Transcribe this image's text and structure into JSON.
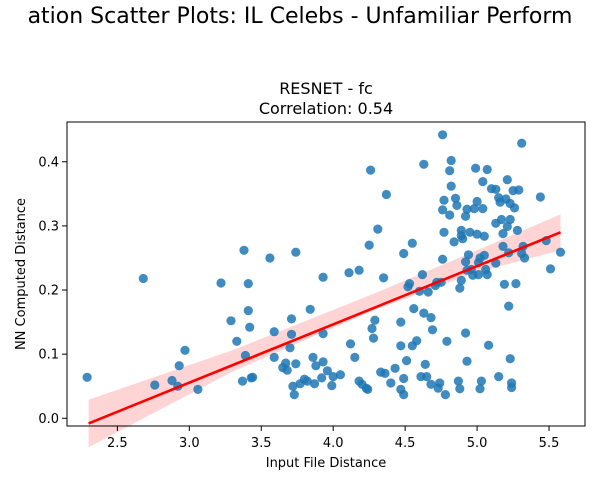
{
  "suptitle": "ation Scatter Plots: IL Celebs - Unfamiliar Perform",
  "chart_data": {
    "type": "scatter",
    "title": "RESNET - fc",
    "subtitle": "Correlation: 0.54",
    "xlabel": "Input File Distance",
    "ylabel": "NN Computed Distance",
    "xlim": [
      2.15,
      5.75
    ],
    "ylim": [
      -0.012,
      0.462
    ],
    "xticks": [
      "2.5",
      "3.0",
      "3.5",
      "4.0",
      "4.5",
      "5.0",
      "5.5"
    ],
    "yticks": [
      "0.0",
      "0.1",
      "0.2",
      "0.3",
      "0.4"
    ],
    "grid": false,
    "point_color": "#1f77b4",
    "fit_color": "#ff0000",
    "band_color": "#ffcccc",
    "fit": {
      "x": [
        2.3,
        5.58
      ],
      "y": [
        -0.008,
        0.29
      ]
    },
    "band": {
      "x": [
        2.3,
        3.3,
        4.3,
        5.0,
        5.58
      ],
      "upper": [
        0.029,
        0.106,
        0.196,
        0.262,
        0.318
      ],
      "lower": [
        -0.045,
        0.073,
        0.17,
        0.228,
        0.262
      ]
    },
    "points": [
      [
        2.29,
        0.064
      ],
      [
        2.68,
        0.218
      ],
      [
        2.76,
        0.052
      ],
      [
        2.88,
        0.059
      ],
      [
        2.92,
        0.05
      ],
      [
        2.93,
        0.082
      ],
      [
        2.97,
        0.106
      ],
      [
        3.06,
        0.045
      ],
      [
        3.22,
        0.211
      ],
      [
        3.29,
        0.152
      ],
      [
        3.33,
        0.12
      ],
      [
        3.37,
        0.058
      ],
      [
        3.38,
        0.262
      ],
      [
        3.39,
        0.098
      ],
      [
        3.41,
        0.21
      ],
      [
        3.41,
        0.168
      ],
      [
        3.42,
        0.142
      ],
      [
        3.43,
        0.063
      ],
      [
        3.44,
        0.064
      ],
      [
        3.56,
        0.25
      ],
      [
        3.59,
        0.135
      ],
      [
        3.59,
        0.095
      ],
      [
        3.65,
        0.079
      ],
      [
        3.67,
        0.086
      ],
      [
        3.68,
        0.075
      ],
      [
        3.7,
        0.11
      ],
      [
        3.71,
        0.131
      ],
      [
        3.71,
        0.155
      ],
      [
        3.72,
        0.05
      ],
      [
        3.73,
        0.037
      ],
      [
        3.74,
        0.259
      ],
      [
        3.74,
        0.085
      ],
      [
        3.77,
        0.054
      ],
      [
        3.8,
        0.061
      ],
      [
        3.82,
        0.058
      ],
      [
        3.84,
        0.17
      ],
      [
        3.86,
        0.095
      ],
      [
        3.87,
        0.054
      ],
      [
        3.88,
        0.082
      ],
      [
        3.92,
        0.063
      ],
      [
        3.93,
        0.088
      ],
      [
        3.93,
        0.22
      ],
      [
        3.93,
        0.132
      ],
      [
        3.96,
        0.074
      ],
      [
        3.99,
        0.051
      ],
      [
        4.0,
        0.065
      ],
      [
        4.05,
        0.068
      ],
      [
        4.11,
        0.227
      ],
      [
        4.12,
        0.116
      ],
      [
        4.15,
        0.095
      ],
      [
        4.18,
        0.058
      ],
      [
        4.18,
        0.231
      ],
      [
        4.2,
        0.053
      ],
      [
        4.23,
        0.047
      ],
      [
        4.24,
        0.045
      ],
      [
        4.25,
        0.27
      ],
      [
        4.26,
        0.387
      ],
      [
        4.27,
        0.14
      ],
      [
        4.28,
        0.125
      ],
      [
        4.29,
        0.153
      ],
      [
        4.31,
        0.295
      ],
      [
        4.33,
        0.072
      ],
      [
        4.35,
        0.219
      ],
      [
        4.36,
        0.07
      ],
      [
        4.37,
        0.349
      ],
      [
        4.4,
        0.055
      ],
      [
        4.43,
        0.078
      ],
      [
        4.47,
        0.113
      ],
      [
        4.47,
        0.15
      ],
      [
        4.47,
        0.045
      ],
      [
        4.49,
        0.062
      ],
      [
        4.49,
        0.037
      ],
      [
        4.49,
        0.257
      ],
      [
        4.51,
        0.09
      ],
      [
        4.52,
        0.205
      ],
      [
        4.53,
        0.21
      ],
      [
        4.55,
        0.113
      ],
      [
        4.55,
        0.273
      ],
      [
        4.56,
        0.171
      ],
      [
        4.58,
        0.121
      ],
      [
        4.6,
        0.198
      ],
      [
        4.61,
        0.065
      ],
      [
        4.62,
        0.224
      ],
      [
        4.63,
        0.396
      ],
      [
        4.63,
        0.164
      ],
      [
        4.64,
        0.084
      ],
      [
        4.65,
        0.065
      ],
      [
        4.66,
        0.197
      ],
      [
        4.68,
        0.053
      ],
      [
        4.68,
        0.157
      ],
      [
        4.69,
        0.138
      ],
      [
        4.71,
        0.207
      ],
      [
        4.72,
        0.212
      ],
      [
        4.73,
        0.047
      ],
      [
        4.74,
        0.055
      ],
      [
        4.75,
        0.212
      ],
      [
        4.76,
        0.248
      ],
      [
        4.76,
        0.442
      ],
      [
        4.76,
        0.325
      ],
      [
        4.77,
        0.29
      ],
      [
        4.77,
        0.34
      ],
      [
        4.78,
        0.037
      ],
      [
        4.79,
        0.12
      ],
      [
        4.81,
        0.386
      ],
      [
        4.81,
        0.317
      ],
      [
        4.82,
        0.362
      ],
      [
        4.82,
        0.402
      ],
      [
        4.84,
        0.275
      ],
      [
        4.85,
        0.343
      ],
      [
        4.86,
        0.332
      ],
      [
        4.87,
        0.058
      ],
      [
        4.88,
        0.046
      ],
      [
        4.88,
        0.203
      ],
      [
        4.89,
        0.285
      ],
      [
        4.89,
        0.293
      ],
      [
        4.89,
        0.215
      ],
      [
        4.9,
        0.28
      ],
      [
        4.92,
        0.315
      ],
      [
        4.92,
        0.244
      ],
      [
        4.92,
        0.133
      ],
      [
        4.93,
        0.231
      ],
      [
        4.93,
        0.326
      ],
      [
        4.93,
        0.089
      ],
      [
        4.94,
        0.255
      ],
      [
        4.95,
        0.29
      ],
      [
        4.96,
        0.232
      ],
      [
        4.97,
        0.223
      ],
      [
        4.98,
        0.327
      ],
      [
        4.99,
        0.39
      ],
      [
        5.0,
        0.338
      ],
      [
        5.0,
        0.287
      ],
      [
        5.01,
        0.243
      ],
      [
        5.01,
        0.224
      ],
      [
        5.02,
        0.25
      ],
      [
        5.02,
        0.046
      ],
      [
        5.03,
        0.058
      ],
      [
        5.04,
        0.369
      ],
      [
        5.04,
        0.327
      ],
      [
        5.05,
        0.284
      ],
      [
        5.05,
        0.254
      ],
      [
        5.06,
        0.232
      ],
      [
        5.07,
        0.388
      ],
      [
        5.07,
        0.224
      ],
      [
        5.08,
        0.114
      ],
      [
        5.1,
        0.358
      ],
      [
        5.13,
        0.357
      ],
      [
        5.13,
        0.304
      ],
      [
        5.13,
        0.242
      ],
      [
        5.15,
        0.065
      ],
      [
        5.15,
        0.344
      ],
      [
        5.16,
        0.337
      ],
      [
        5.17,
        0.31
      ],
      [
        5.18,
        0.268
      ],
      [
        5.18,
        0.288
      ],
      [
        5.19,
        0.209
      ],
      [
        5.2,
        0.342
      ],
      [
        5.21,
        0.372
      ],
      [
        5.21,
        0.299
      ],
      [
        5.22,
        0.258
      ],
      [
        5.22,
        0.175
      ],
      [
        5.23,
        0.335
      ],
      [
        5.23,
        0.31
      ],
      [
        5.23,
        0.093
      ],
      [
        5.24,
        0.048
      ],
      [
        5.24,
        0.055
      ],
      [
        5.25,
        0.355
      ],
      [
        5.26,
        0.328
      ],
      [
        5.27,
        0.21
      ],
      [
        5.28,
        0.293
      ],
      [
        5.29,
        0.356
      ],
      [
        5.31,
        0.429
      ],
      [
        5.31,
        0.257
      ],
      [
        5.32,
        0.268
      ],
      [
        5.33,
        0.25
      ],
      [
        5.44,
        0.345
      ],
      [
        5.51,
        0.233
      ],
      [
        5.58,
        0.259
      ],
      [
        5.48,
        0.277
      ]
    ]
  }
}
